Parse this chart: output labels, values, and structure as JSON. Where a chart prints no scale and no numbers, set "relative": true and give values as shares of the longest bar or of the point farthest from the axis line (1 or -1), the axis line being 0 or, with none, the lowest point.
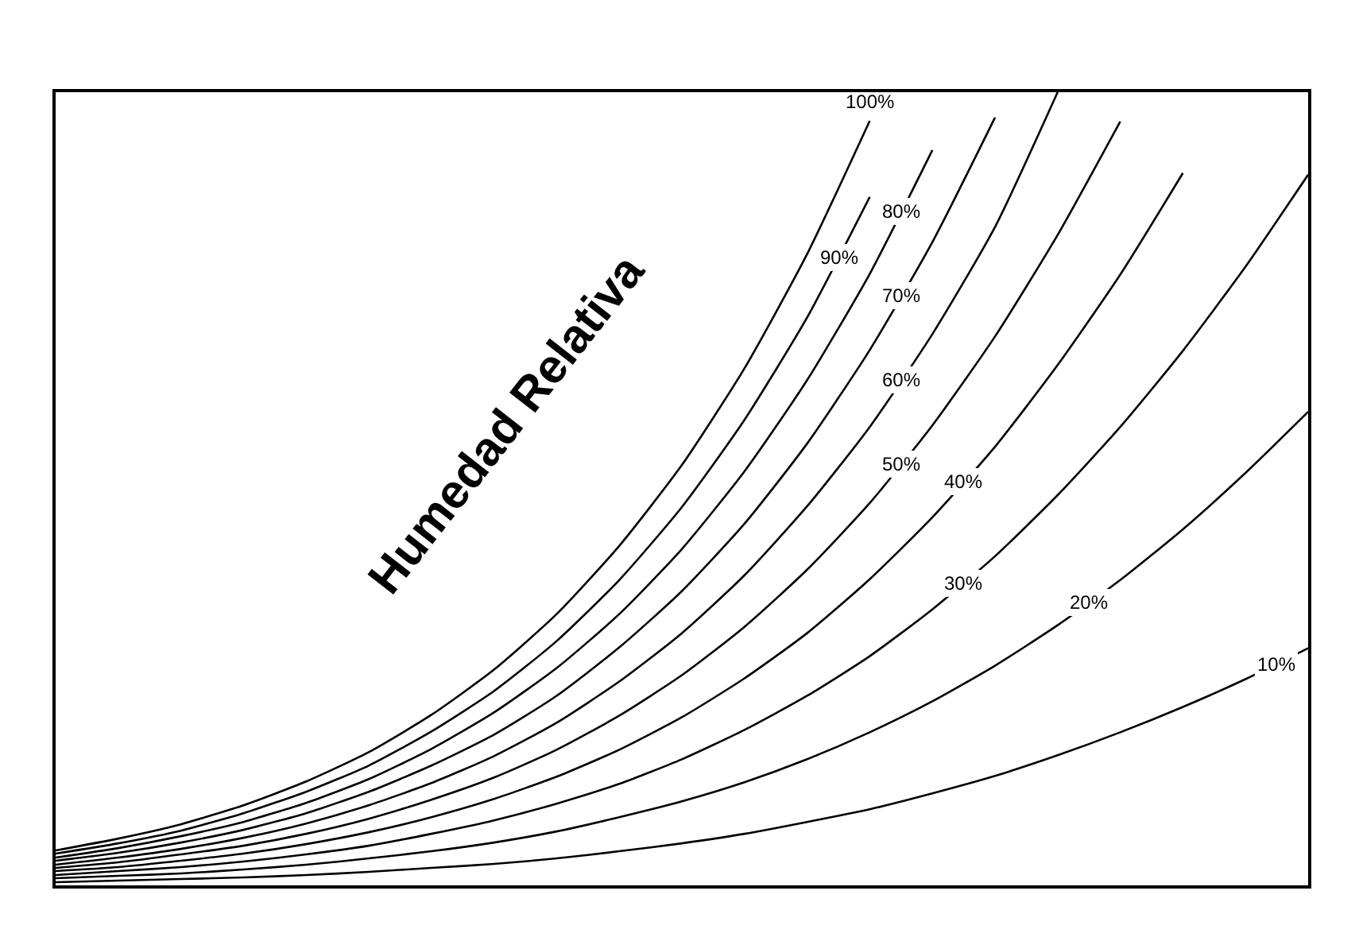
{
  "chart_data": {
    "type": "line",
    "relative": true,
    "annotations": [
      "Humedad Relativa"
    ],
    "marker": "none",
    "line_style": "solid",
    "categories": [
      null,
      null,
      null,
      null,
      null,
      null,
      null,
      null,
      null,
      null,
      null,
      null,
      null,
      null,
      null,
      null,
      null,
      null,
      null,
      null,
      null
    ],
    "series": [
      {
        "name": "100%",
        "color": "#000000",
        "values": [
          0.044,
          0.059,
          0.077,
          0.101,
          0.131,
          0.168,
          0.215,
          0.272,
          0.342,
          0.428,
          0.53,
          0.652,
          0.796,
          0.964,
          null,
          null,
          null,
          null,
          null,
          null,
          null
        ]
      },
      {
        "name": "90%",
        "color": "#000000",
        "values": [
          0.04,
          0.053,
          0.069,
          0.091,
          0.118,
          0.151,
          0.194,
          0.245,
          0.308,
          0.385,
          0.477,
          0.587,
          0.716,
          0.868,
          null,
          null,
          null,
          null,
          null,
          null,
          null
        ]
      },
      {
        "name": "80%",
        "color": "#000000",
        "values": [
          0.035,
          0.047,
          0.062,
          0.08,
          0.104,
          0.134,
          0.172,
          0.218,
          0.274,
          0.342,
          0.424,
          0.522,
          0.637,
          0.771,
          0.927,
          null,
          null,
          null,
          null,
          null,
          null
        ]
      },
      {
        "name": "70%",
        "color": "#000000",
        "values": [
          0.031,
          0.041,
          0.054,
          0.07,
          0.091,
          0.118,
          0.151,
          0.19,
          0.239,
          0.3,
          0.371,
          0.456,
          0.557,
          0.675,
          0.811,
          0.968,
          null,
          null,
          null,
          null,
          null
        ]
      },
      {
        "name": "60%",
        "color": "#000000",
        "values": [
          0.026,
          0.035,
          0.046,
          0.06,
          0.078,
          0.101,
          0.129,
          0.163,
          0.205,
          0.257,
          0.318,
          0.391,
          0.478,
          0.578,
          0.695,
          0.83,
          1.0,
          null,
          null,
          null,
          null
        ]
      },
      {
        "name": "50%",
        "color": "#000000",
        "values": [
          0.022,
          0.029,
          0.039,
          0.05,
          0.065,
          0.084,
          0.108,
          0.136,
          0.171,
          0.214,
          0.265,
          0.326,
          0.398,
          0.482,
          0.58,
          0.692,
          0.82,
          0.963,
          null,
          null,
          null
        ]
      },
      {
        "name": "40%",
        "color": "#000000",
        "values": [
          0.018,
          0.023,
          0.031,
          0.04,
          0.052,
          0.067,
          0.086,
          0.109,
          0.137,
          0.171,
          0.212,
          0.261,
          0.318,
          0.386,
          0.464,
          0.553,
          0.656,
          0.77,
          0.898,
          null,
          null
        ]
      },
      {
        "name": "30%",
        "color": "#000000",
        "values": [
          0.013,
          0.018,
          0.023,
          0.03,
          0.039,
          0.05,
          0.065,
          0.082,
          0.103,
          0.128,
          0.159,
          0.196,
          0.239,
          0.289,
          0.348,
          0.415,
          0.492,
          0.578,
          0.674,
          0.78,
          0.896
        ]
      },
      {
        "name": "20%",
        "color": "#000000",
        "values": [
          0.009,
          0.012,
          0.015,
          0.02,
          0.026,
          0.034,
          0.043,
          0.054,
          0.068,
          0.086,
          0.106,
          0.13,
          0.159,
          0.193,
          0.232,
          0.277,
          0.328,
          0.385,
          0.449,
          0.52,
          0.597
        ]
      },
      {
        "name": "10%",
        "color": "#000000",
        "values": [
          0.004,
          0.006,
          0.008,
          0.01,
          0.013,
          0.017,
          0.022,
          0.027,
          0.034,
          0.043,
          0.053,
          0.065,
          0.08,
          0.096,
          0.116,
          0.138,
          0.164,
          0.193,
          0.225,
          0.26,
          0.299
        ]
      }
    ]
  }
}
